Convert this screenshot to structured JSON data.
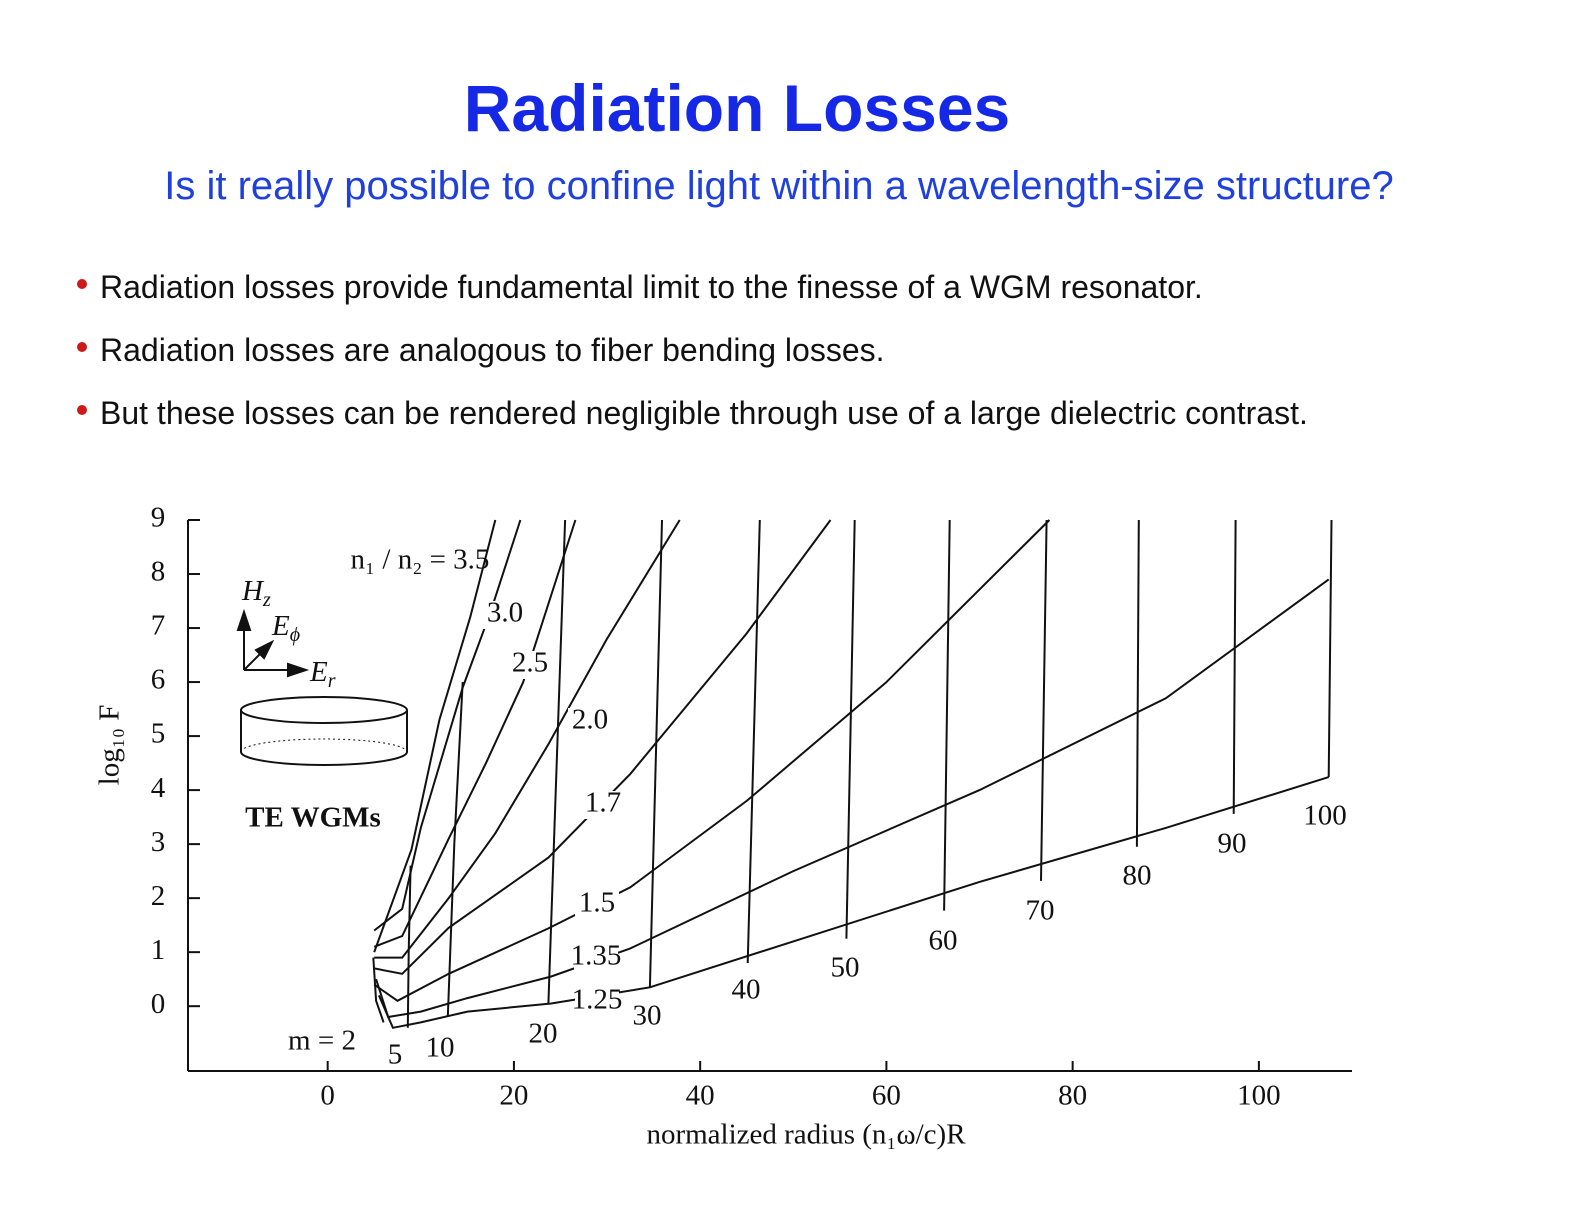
{
  "header": {
    "title": "Radiation Losses",
    "subtitle": "Is it really possible to confine light within a wavelength-size structure?"
  },
  "bullets": [
    "Radiation losses provide fundamental limit to the finesse of a WGM resonator.",
    "Radiation losses are analogous to fiber bending losses.",
    "But these losses can be rendered negligible through use of a large dielectric contrast."
  ],
  "chart_data": {
    "type": "line",
    "x_label": "normalized radius (n₁ω/c)R",
    "y_label": "log₁₀ F",
    "xlim": [
      -15,
      110
    ],
    "xticks": [
      0,
      20,
      40,
      60,
      80,
      100
    ],
    "ylim": [
      -1.2,
      9
    ],
    "yticks": [
      0,
      1,
      2,
      3,
      4,
      5,
      6,
      7,
      8,
      9
    ],
    "annotations": [
      {
        "text": "H",
        "sub": "z"
      },
      {
        "text": "E",
        "sub": "ϕ"
      },
      {
        "text": "E",
        "sub": "r"
      },
      {
        "text": "TE WGMs"
      }
    ],
    "series": [
      {
        "name": "n₁ / n₂ = 3.5",
        "color": "#111111",
        "x": [
          5,
          9,
          12,
          15.3,
          18
        ],
        "values": [
          1.0,
          2.9,
          5.3,
          7.2,
          9
        ]
      },
      {
        "name": "3.0",
        "color": "#111111",
        "x": [
          5,
          8,
          10,
          14.5,
          17.5,
          20.7
        ],
        "values": [
          1.4,
          1.8,
          3.3,
          5.9,
          7.3,
          9
        ]
      },
      {
        "name": "2.5",
        "color": "#111111",
        "x": [
          5,
          8,
          13,
          17,
          21,
          26.6
        ],
        "values": [
          1.1,
          1.3,
          3.1,
          4.5,
          6.0,
          9
        ]
      },
      {
        "name": "2.0",
        "color": "#111111",
        "x": [
          5,
          8,
          13,
          18,
          23.7,
          30,
          37.8
        ],
        "values": [
          0.9,
          0.9,
          2.0,
          3.2,
          4.85,
          6.8,
          9
        ]
      },
      {
        "name": "1.7",
        "color": "#111111",
        "x": [
          5,
          8,
          13,
          23.7,
          32.5,
          45,
          54
        ],
        "values": [
          0.7,
          0.6,
          1.45,
          2.75,
          4.3,
          6.9,
          9
        ]
      },
      {
        "name": "1.5",
        "color": "#111111",
        "x": [
          5,
          7.5,
          13,
          23.7,
          32.5,
          45,
          60,
          77.5
        ],
        "values": [
          0.4,
          0.1,
          0.6,
          1.44,
          2.2,
          3.8,
          6.0,
          9
        ]
      },
      {
        "name": "1.35",
        "color": "#111111",
        "x": [
          5.2,
          6.5,
          10,
          15,
          24,
          32.5,
          50,
          70,
          90,
          107.5
        ],
        "values": [
          0.5,
          -0.2,
          -0.1,
          0.15,
          0.55,
          1.07,
          2.5,
          4.0,
          5.7,
          7.9
        ]
      },
      {
        "name": "1.25",
        "color": "#111111",
        "x": [
          5.5,
          7,
          10,
          15,
          24,
          34.6,
          50,
          70,
          90,
          107.5
        ],
        "values": [
          0.2,
          -0.4,
          -0.3,
          -0.1,
          0.05,
          0.35,
          1.2,
          2.3,
          3.3,
          4.24
        ]
      },
      {
        "name": "m = 2",
        "color": "#111111",
        "x": [
          4.9,
          5.2,
          6
        ],
        "values": [
          0.9,
          0.1,
          -0.3
        ]
      },
      {
        "name": "5",
        "color": "#111111",
        "x": [
          8.9,
          8.7,
          8.6
        ],
        "values": [
          2.6,
          1.0,
          -0.4
        ]
      },
      {
        "name": "10",
        "color": "#111111",
        "x": [
          14.5,
          13.6,
          12.9
        ],
        "values": [
          6.0,
          3.0,
          -0.2
        ]
      },
      {
        "name": "20",
        "color": "#111111",
        "x": [
          25.5,
          23.7
        ],
        "values": [
          9,
          0.05
        ]
      },
      {
        "name": "30",
        "color": "#111111",
        "x": [
          35.9,
          34.6
        ],
        "values": [
          9,
          0.35
        ]
      },
      {
        "name": "40",
        "color": "#111111",
        "x": [
          46.4,
          45.1
        ],
        "values": [
          9,
          0.8
        ]
      },
      {
        "name": "50",
        "color": "#111111",
        "x": [
          56.6,
          55.7
        ],
        "values": [
          9,
          1.25
        ]
      },
      {
        "name": "60",
        "color": "#111111",
        "x": [
          66.8,
          66.2
        ],
        "values": [
          9,
          1.77
        ]
      },
      {
        "name": "70",
        "color": "#111111",
        "x": [
          77.2,
          76.6
        ],
        "values": [
          9,
          2.32
        ]
      },
      {
        "name": "80",
        "color": "#111111",
        "x": [
          87.1,
          86.9
        ],
        "values": [
          9,
          2.95
        ]
      },
      {
        "name": "90",
        "color": "#111111",
        "x": [
          97.5,
          97.3
        ],
        "values": [
          9,
          3.56
        ]
      },
      {
        "name": "100",
        "color": "#111111",
        "x": [
          107.8,
          107.5
        ],
        "values": [
          9,
          4.24
        ]
      }
    ]
  }
}
